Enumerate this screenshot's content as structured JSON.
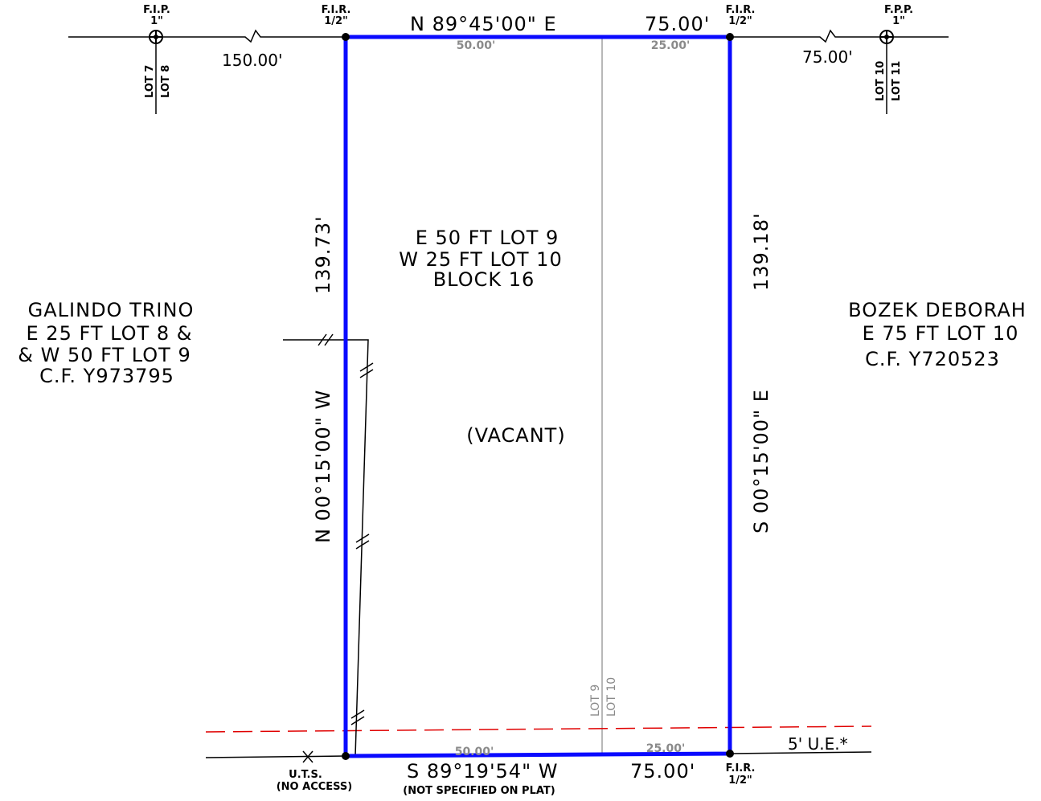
{
  "colors": {
    "boundary": "#0a0aff",
    "easement": "#e00000",
    "lot_line": "#a0a0a0",
    "ink": "#000000"
  },
  "corners": {
    "nw_label1": "F.I.R.",
    "nw_label2": "1/2\"",
    "ne_label1": "F.I.R.",
    "ne_label2": "1/2\"",
    "se_label1": "F.I.R.",
    "se_label2": "1/2\"",
    "far_w_label1": "F.I.P.",
    "far_w_label2": "1\"",
    "far_e_label1": "F.P.P.",
    "far_e_label2": "1\""
  },
  "lots": {
    "lot7": "LOT 7",
    "lot8": "LOT 8",
    "lot10_top": "LOT 10",
    "lot11": "LOT 11",
    "lot9_bottom": "LOT 9",
    "lot10_bottom": "LOT 10"
  },
  "dimensions": {
    "top_bearing": "N 89°45'00\" E",
    "top_distance": "75.00'",
    "top_sub_west": "50.00'",
    "top_sub_east": "25.00'",
    "west_offset": "150.00'",
    "east_offset": "75.00'",
    "west_length": "139.73'",
    "west_bearing": "N 00°15'00\" W",
    "east_length": "139.18'",
    "east_bearing": "S 00°15'00\" E",
    "bottom_bearing": "S 89°19'54\" W",
    "bottom_note": "(NOT SPECIFIED ON PLAT)",
    "bottom_distance": "75.00'",
    "bottom_sub_west": "50.00'",
    "bottom_sub_east": "25.00'",
    "easement": "5' U.E.*"
  },
  "parcel": {
    "line1": "E 50 FT LOT 9",
    "line2": "W 25 FT LOT 10",
    "line3": "BLOCK 16",
    "status": "(VACANT)"
  },
  "west_owner": {
    "name": "GALINDO TRINO",
    "line2": "E 25 FT LOT 8 &",
    "line3": "& W 50 FT LOT 9",
    "line4": "C.F. Y973795"
  },
  "east_owner": {
    "name": "BOZEK DEBORAH",
    "line2": "E 75 FT LOT 10",
    "line3": "C.F. Y720523"
  },
  "uts": {
    "label": "U.T.S.",
    "note": "(NO ACCESS)"
  }
}
